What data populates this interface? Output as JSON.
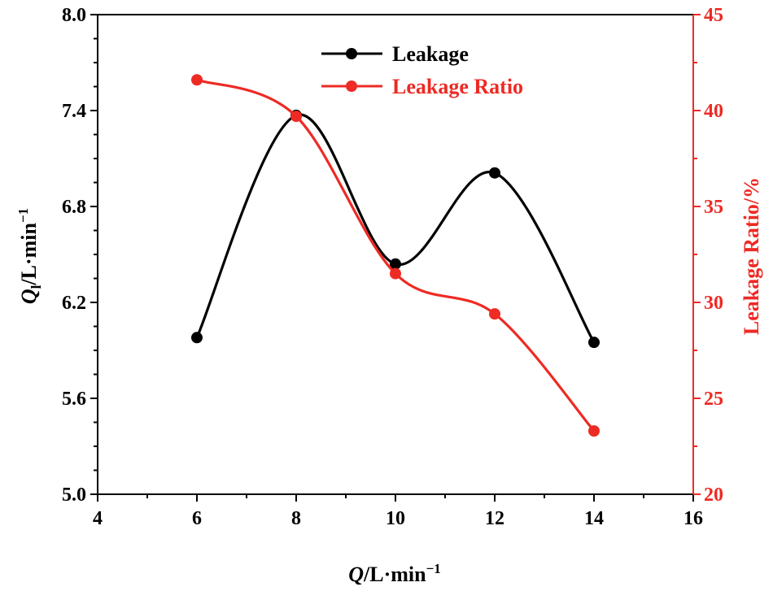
{
  "chart_data": {
    "type": "line",
    "x": [
      6,
      8,
      10,
      12,
      14
    ],
    "xlim": [
      4,
      16
    ],
    "x_ticks": [
      4,
      6,
      8,
      10,
      12,
      14,
      16
    ],
    "x_tick_labels": [
      "4",
      "6",
      "8",
      "10",
      "12",
      "14",
      "16"
    ],
    "xlabel": {
      "main": "Q",
      "unit": "/L·min",
      "exp": "−1"
    },
    "left_axis": {
      "ylim": [
        5.0,
        8.0
      ],
      "ticks": [
        5.0,
        5.6,
        6.2,
        6.8,
        7.4,
        8.0
      ],
      "tick_labels": [
        "5.0",
        "5.6",
        "6.2",
        "6.8",
        "7.4",
        "8.0"
      ],
      "label": {
        "main": "Q",
        "sub": "l",
        "unit": "/L·min",
        "exp": "−1"
      }
    },
    "right_axis": {
      "ylim": [
        20,
        45
      ],
      "ticks": [
        20,
        25,
        30,
        35,
        40,
        45
      ],
      "tick_labels": [
        "20",
        "25",
        "30",
        "35",
        "40",
        "45"
      ],
      "label": "Leakage Ratio/%"
    },
    "series": [
      {
        "name": "Leakage",
        "axis": "left",
        "color": "#000000",
        "values": [
          5.98,
          7.37,
          6.44,
          7.01,
          5.95
        ]
      },
      {
        "name": "Leakage Ratio",
        "axis": "right",
        "color": "#ee2a24",
        "values": [
          41.6,
          39.7,
          31.5,
          29.4,
          23.3
        ]
      }
    ],
    "legend": [
      "Leakage",
      "Leakage Ratio"
    ],
    "legend_position": "top-center"
  }
}
